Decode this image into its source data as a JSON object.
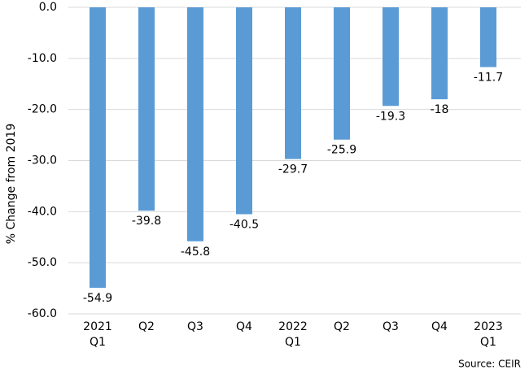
{
  "chart_data": {
    "type": "bar",
    "categories": [
      "2021 Q1",
      "Q2",
      "Q3",
      "Q4",
      "2022 Q1",
      "Q2",
      "Q3",
      "Q4",
      "2023 Q1"
    ],
    "values": [
      -54.9,
      -39.8,
      -45.8,
      -40.5,
      -29.7,
      -25.9,
      -19.3,
      -18.0,
      -11.7
    ],
    "color": "#5b9bd5",
    "ylabel": "% Change from 2019",
    "source": "Source: CEIR",
    "ylim": [
      -60,
      0
    ],
    "yticks": [
      {
        "value": 0,
        "label": "0.0"
      },
      {
        "value": -10,
        "label": "-10.0"
      },
      {
        "value": -20,
        "label": "-20.0"
      },
      {
        "value": -30,
        "label": "-30.0"
      },
      {
        "value": -40,
        "label": "-40.0"
      },
      {
        "value": -50,
        "label": "-50.0"
      },
      {
        "value": -60,
        "label": "-60.0"
      }
    ],
    "grid": true
  }
}
